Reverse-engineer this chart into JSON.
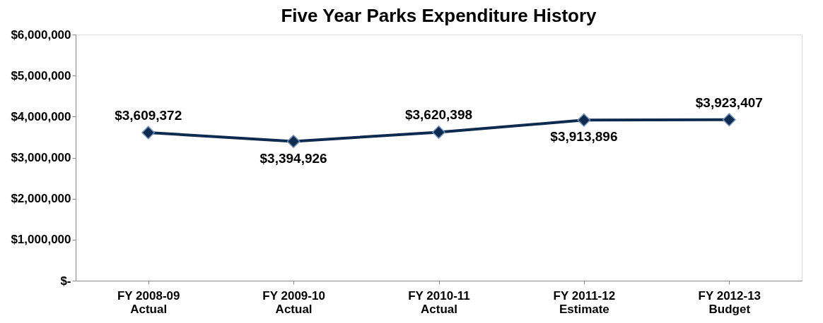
{
  "chart_data": {
    "type": "line",
    "title": "Five Year Parks Expenditure History",
    "categories": [
      "FY 2008-09\nActual",
      "FY 2009-10\nActual",
      "FY 2010-11\nActual",
      "FY 2011-12\nEstimate",
      "FY 2012-13\nBudget"
    ],
    "series": [
      {
        "color": "#0d2b4e",
        "values": [
          3609372,
          3394926,
          3620398,
          3913896,
          3923407
        ]
      }
    ],
    "value_labels": [
      "$3,609,372",
      "$3,394,926",
      "$3,620,398",
      "$3,913,896",
      "$3,923,407"
    ],
    "ylim": [
      0,
      6000000
    ],
    "yticks": [
      {
        "value": 0,
        "label": "$-"
      },
      {
        "value": 1000000,
        "label": "$1,000,000"
      },
      {
        "value": 2000000,
        "label": "$2,000,000"
      },
      {
        "value": 3000000,
        "label": "$3,000,000"
      },
      {
        "value": 4000000,
        "label": "$4,000,000"
      },
      {
        "value": 5000000,
        "label": "$5,000,000"
      },
      {
        "value": 6000000,
        "label": "$6,000,000"
      }
    ],
    "marker": "diamond",
    "line_style": "solid",
    "grid": false
  }
}
